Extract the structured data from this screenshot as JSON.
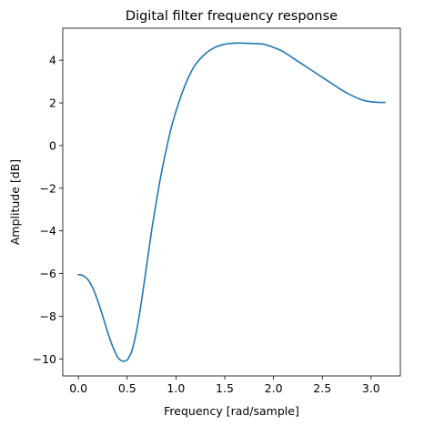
{
  "chart_data": {
    "type": "line",
    "title": "Digital filter frequency response",
    "xlabel": "Frequency [rad/sample]",
    "ylabel": "Amplitude [dB]",
    "xlim": [
      -0.16,
      3.3
    ],
    "ylim": [
      -10.8,
      5.5
    ],
    "x_ticks": [
      0.0,
      0.5,
      1.0,
      1.5,
      2.0,
      2.5,
      3.0
    ],
    "x_tick_labels": [
      "0.0",
      "0.5",
      "1.0",
      "1.5",
      "2.0",
      "2.5",
      "3.0"
    ],
    "y_ticks": [
      -10,
      -8,
      -6,
      -4,
      -2,
      0,
      2,
      4
    ],
    "y_tick_labels": [
      "−10",
      "−8",
      "−6",
      "−4",
      "−2",
      "0",
      "2",
      "4"
    ],
    "grid": false,
    "line_color": "#1f77b4",
    "series": [
      {
        "x": [
          0.0,
          0.05,
          0.1,
          0.15,
          0.2,
          0.25,
          0.3,
          0.35,
          0.4,
          0.45,
          0.5,
          0.52,
          0.55,
          0.6,
          0.65,
          0.7,
          0.75,
          0.8,
          0.85,
          0.9,
          0.95,
          1.0,
          1.05,
          1.1,
          1.15,
          1.2,
          1.3,
          1.4,
          1.5,
          1.6,
          1.7,
          1.8,
          1.9,
          2.0,
          2.1,
          2.2,
          2.3,
          2.4,
          2.5,
          2.6,
          2.7,
          2.8,
          2.9,
          3.0,
          3.1,
          3.14159
        ],
        "y": [
          -6.05,
          -6.1,
          -6.3,
          -6.7,
          -7.3,
          -8.0,
          -8.75,
          -9.4,
          -9.9,
          -10.1,
          -10.05,
          -9.9,
          -9.6,
          -8.6,
          -7.2,
          -5.6,
          -4.0,
          -2.6,
          -1.3,
          -0.2,
          0.8,
          1.6,
          2.3,
          2.9,
          3.4,
          3.8,
          4.3,
          4.6,
          4.75,
          4.8,
          4.8,
          4.78,
          4.75,
          4.6,
          4.4,
          4.1,
          3.8,
          3.5,
          3.2,
          2.9,
          2.6,
          2.35,
          2.15,
          2.05,
          2.02,
          2.02
        ]
      }
    ]
  }
}
